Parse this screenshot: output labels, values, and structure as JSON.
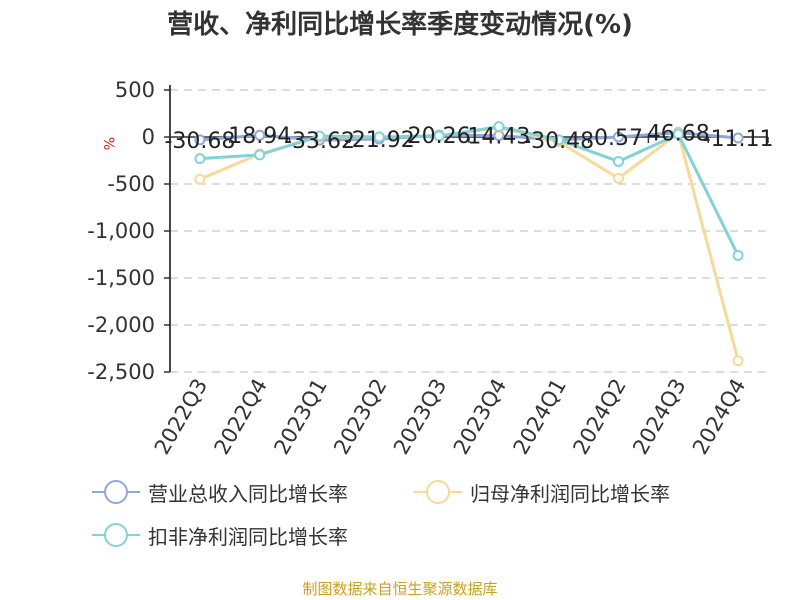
{
  "title": "营收、净利同比增长率季度变动情况(%)",
  "source": "制图数据来自恒生聚源数据库",
  "chart_data": {
    "type": "line",
    "title": "营收、净利同比增长率季度变动情况(%)",
    "ylabel": "%",
    "ylim": [
      -2500,
      500
    ],
    "yticks": [
      500,
      0,
      -500,
      -1000,
      -1500,
      -2000,
      -2500
    ],
    "ytick_labels": [
      "500",
      "0",
      "-500",
      "-1,000",
      "-1,500",
      "-2,000",
      "-2,500"
    ],
    "categories": [
      "2022Q3",
      "2022Q4",
      "2023Q1",
      "2023Q2",
      "2023Q3",
      "2023Q4",
      "2024Q1",
      "2024Q2",
      "2024Q3",
      "2024Q4"
    ],
    "grid": true,
    "legend_position": "bottom",
    "series": [
      {
        "name": "营业总收入同比增长率",
        "color": "#8fa8d8",
        "values": [
          -30.68,
          18.94,
          -33.62,
          -21.92,
          20.26,
          14.43,
          -30.48,
          0.57,
          46.68,
          -11.11
        ],
        "labels": [
          "-30.68",
          "18.94",
          "-33.62",
          "-21.92",
          "20.26",
          "14.43",
          "-30.48",
          "0.57",
          "46.68",
          "-11.11"
        ]
      },
      {
        "name": "归母净利润同比增长率",
        "color": "#f7d99a",
        "values": [
          -450,
          -180,
          0,
          0,
          10,
          100,
          -50,
          -440,
          40,
          -2380
        ]
      },
      {
        "name": "扣非净利润同比增长率",
        "color": "#84d2d6",
        "values": [
          -230,
          -190,
          10,
          0,
          10,
          110,
          -30,
          -260,
          30,
          -1260
        ]
      }
    ]
  }
}
